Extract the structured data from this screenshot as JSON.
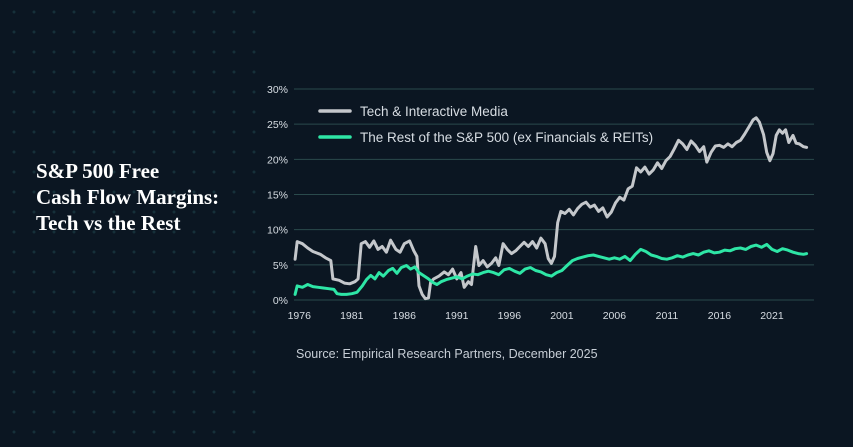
{
  "title_lines": [
    "S&P 500 Free",
    "Cash Flow Margins:",
    "Tech vs the Rest"
  ],
  "source": "Source: Empirical Research Partners, December 2025",
  "colors": {
    "tech": "#c4c7cb",
    "rest": "#2ee6a6",
    "grid": "#2a4a4c",
    "text": "#d7dde3",
    "background": "#0b1622"
  },
  "chart_data": {
    "type": "line",
    "xlim": [
      1975.5,
      2025
    ],
    "ylim": [
      0,
      30
    ],
    "y_ticks": [
      0,
      5,
      10,
      15,
      20,
      25,
      30
    ],
    "y_tick_labels": [
      "0%",
      "5%",
      "10%",
      "15%",
      "20%",
      "25%",
      "30%"
    ],
    "x_ticks": [
      1976,
      1981,
      1986,
      1991,
      1996,
      2001,
      2006,
      2011,
      2016,
      2021
    ],
    "x_tick_labels": [
      "1976",
      "1981",
      "1986",
      "1991",
      "1996",
      "2001",
      "2006",
      "2011",
      "2016",
      "2021"
    ],
    "grid": "horizontal",
    "legend_position": "top-left",
    "xlabel": "",
    "ylabel": "",
    "series": [
      {
        "name": "Tech & Interactive Media",
        "color": "#c4c7cb",
        "points": [
          [
            1975.6,
            5.8
          ],
          [
            1975.8,
            8.3
          ],
          [
            1976.3,
            8.0
          ],
          [
            1976.8,
            7.4
          ],
          [
            1977.3,
            6.9
          ],
          [
            1978.0,
            6.5
          ],
          [
            1978.5,
            6.0
          ],
          [
            1979.0,
            5.6
          ],
          [
            1979.2,
            3.0
          ],
          [
            1979.8,
            2.8
          ],
          [
            1980.3,
            2.4
          ],
          [
            1980.8,
            2.3
          ],
          [
            1981.3,
            2.6
          ],
          [
            1981.6,
            3.0
          ],
          [
            1981.9,
            8.0
          ],
          [
            1982.3,
            8.3
          ],
          [
            1982.7,
            7.5
          ],
          [
            1983.1,
            8.4
          ],
          [
            1983.5,
            7.2
          ],
          [
            1983.9,
            7.6
          ],
          [
            1984.3,
            6.8
          ],
          [
            1984.7,
            8.5
          ],
          [
            1985.2,
            7.2
          ],
          [
            1985.6,
            6.8
          ],
          [
            1986.0,
            8.0
          ],
          [
            1986.5,
            8.4
          ],
          [
            1986.9,
            7.0
          ],
          [
            1987.2,
            6.2
          ],
          [
            1987.4,
            2.0
          ],
          [
            1987.7,
            0.8
          ],
          [
            1988.0,
            0.2
          ],
          [
            1988.3,
            0.3
          ],
          [
            1988.5,
            2.5
          ],
          [
            1988.8,
            3.0
          ],
          [
            1989.3,
            3.4
          ],
          [
            1989.8,
            4.0
          ],
          [
            1990.2,
            3.6
          ],
          [
            1990.6,
            4.4
          ],
          [
            1991.0,
            3.0
          ],
          [
            1991.4,
            3.9
          ],
          [
            1991.7,
            1.8
          ],
          [
            1992.1,
            2.6
          ],
          [
            1992.4,
            2.2
          ],
          [
            1992.8,
            7.6
          ],
          [
            1993.1,
            4.9
          ],
          [
            1993.5,
            5.6
          ],
          [
            1993.9,
            4.7
          ],
          [
            1994.3,
            5.2
          ],
          [
            1994.7,
            6.0
          ],
          [
            1995.0,
            4.9
          ],
          [
            1995.4,
            8.0
          ],
          [
            1995.8,
            7.2
          ],
          [
            1996.2,
            6.6
          ],
          [
            1996.6,
            7.0
          ],
          [
            1997.0,
            7.6
          ],
          [
            1997.4,
            8.2
          ],
          [
            1997.8,
            7.6
          ],
          [
            1998.2,
            8.3
          ],
          [
            1998.6,
            7.4
          ],
          [
            1999.0,
            8.8
          ],
          [
            1999.4,
            8.0
          ],
          [
            1999.7,
            5.9
          ],
          [
            2000.0,
            5.2
          ],
          [
            2000.3,
            6.2
          ],
          [
            2000.6,
            11.0
          ],
          [
            2000.9,
            12.6
          ],
          [
            2001.3,
            12.3
          ],
          [
            2001.7,
            12.9
          ],
          [
            2002.1,
            12.1
          ],
          [
            2002.5,
            13.0
          ],
          [
            2002.9,
            13.6
          ],
          [
            2003.3,
            13.9
          ],
          [
            2003.7,
            13.2
          ],
          [
            2004.1,
            13.5
          ],
          [
            2004.5,
            12.6
          ],
          [
            2004.9,
            13.1
          ],
          [
            2005.3,
            11.8
          ],
          [
            2005.7,
            12.5
          ],
          [
            2006.1,
            13.8
          ],
          [
            2006.5,
            14.6
          ],
          [
            2006.9,
            14.2
          ],
          [
            2007.3,
            15.8
          ],
          [
            2007.7,
            16.2
          ],
          [
            2008.1,
            18.8
          ],
          [
            2008.5,
            18.2
          ],
          [
            2008.9,
            18.9
          ],
          [
            2009.3,
            17.9
          ],
          [
            2009.7,
            18.5
          ],
          [
            2010.1,
            19.5
          ],
          [
            2010.5,
            18.7
          ],
          [
            2010.9,
            19.8
          ],
          [
            2011.3,
            20.4
          ],
          [
            2011.7,
            21.5
          ],
          [
            2012.1,
            22.7
          ],
          [
            2012.5,
            22.2
          ],
          [
            2012.9,
            21.4
          ],
          [
            2013.3,
            22.6
          ],
          [
            2013.7,
            22.0
          ],
          [
            2014.1,
            21.1
          ],
          [
            2014.5,
            21.8
          ],
          [
            2014.8,
            19.6
          ],
          [
            2015.2,
            21.0
          ],
          [
            2015.6,
            21.9
          ],
          [
            2016.0,
            22.0
          ],
          [
            2016.4,
            21.7
          ],
          [
            2016.8,
            22.2
          ],
          [
            2017.2,
            21.8
          ],
          [
            2017.6,
            22.4
          ],
          [
            2018.0,
            22.7
          ],
          [
            2018.4,
            23.6
          ],
          [
            2018.8,
            24.6
          ],
          [
            2019.2,
            25.6
          ],
          [
            2019.5,
            25.9
          ],
          [
            2019.8,
            25.3
          ],
          [
            2020.2,
            23.5
          ],
          [
            2020.5,
            21.0
          ],
          [
            2020.8,
            19.8
          ],
          [
            2021.1,
            20.8
          ],
          [
            2021.4,
            23.4
          ],
          [
            2021.7,
            24.2
          ],
          [
            2022.0,
            23.7
          ],
          [
            2022.3,
            24.2
          ],
          [
            2022.6,
            22.4
          ],
          [
            2023.0,
            23.4
          ],
          [
            2023.3,
            22.3
          ],
          [
            2023.6,
            22.2
          ],
          [
            2024.0,
            21.8
          ],
          [
            2024.3,
            21.7
          ]
        ]
      },
      {
        "name": "The Rest of the S&P 500 (ex Financials & REITs)",
        "color": "#2ee6a6",
        "points": [
          [
            1975.6,
            0.8
          ],
          [
            1975.8,
            2.0
          ],
          [
            1976.3,
            1.8
          ],
          [
            1976.8,
            2.2
          ],
          [
            1977.3,
            1.9
          ],
          [
            1977.8,
            1.8
          ],
          [
            1978.3,
            1.7
          ],
          [
            1978.8,
            1.6
          ],
          [
            1979.3,
            1.5
          ],
          [
            1979.6,
            0.9
          ],
          [
            1980.0,
            0.8
          ],
          [
            1980.5,
            0.8
          ],
          [
            1981.0,
            0.9
          ],
          [
            1981.5,
            1.1
          ],
          [
            1982.0,
            2.0
          ],
          [
            1982.4,
            2.9
          ],
          [
            1982.8,
            3.5
          ],
          [
            1983.2,
            3.0
          ],
          [
            1983.6,
            3.9
          ],
          [
            1984.0,
            3.4
          ],
          [
            1984.5,
            4.2
          ],
          [
            1984.9,
            4.5
          ],
          [
            1985.3,
            3.8
          ],
          [
            1985.7,
            4.6
          ],
          [
            1986.2,
            4.9
          ],
          [
            1986.6,
            4.4
          ],
          [
            1987.0,
            4.7
          ],
          [
            1987.4,
            3.9
          ],
          [
            1987.8,
            3.5
          ],
          [
            1988.3,
            3.0
          ],
          [
            1988.7,
            2.5
          ],
          [
            1989.1,
            2.2
          ],
          [
            1989.5,
            2.6
          ],
          [
            1990.0,
            2.9
          ],
          [
            1990.5,
            3.1
          ],
          [
            1991.0,
            3.3
          ],
          [
            1991.5,
            3.0
          ],
          [
            1992.0,
            3.4
          ],
          [
            1992.5,
            3.7
          ],
          [
            1993.0,
            3.6
          ],
          [
            1993.5,
            3.9
          ],
          [
            1994.0,
            4.1
          ],
          [
            1994.5,
            3.9
          ],
          [
            1995.0,
            3.6
          ],
          [
            1995.5,
            4.3
          ],
          [
            1996.0,
            4.5
          ],
          [
            1996.5,
            4.1
          ],
          [
            1997.0,
            3.8
          ],
          [
            1997.5,
            4.4
          ],
          [
            1998.0,
            4.6
          ],
          [
            1998.5,
            4.2
          ],
          [
            1999.0,
            4.0
          ],
          [
            1999.5,
            3.6
          ],
          [
            2000.0,
            3.4
          ],
          [
            2000.5,
            3.9
          ],
          [
            2001.0,
            4.2
          ],
          [
            2001.5,
            4.9
          ],
          [
            2002.0,
            5.6
          ],
          [
            2002.5,
            5.9
          ],
          [
            2003.0,
            6.1
          ],
          [
            2003.5,
            6.3
          ],
          [
            2004.0,
            6.4
          ],
          [
            2004.5,
            6.2
          ],
          [
            2005.0,
            6.0
          ],
          [
            2005.5,
            5.8
          ],
          [
            2006.0,
            6.0
          ],
          [
            2006.5,
            5.8
          ],
          [
            2007.0,
            6.2
          ],
          [
            2007.5,
            5.6
          ],
          [
            2008.0,
            6.5
          ],
          [
            2008.5,
            7.2
          ],
          [
            2009.0,
            6.9
          ],
          [
            2009.5,
            6.4
          ],
          [
            2010.0,
            6.2
          ],
          [
            2010.5,
            5.9
          ],
          [
            2011.0,
            5.8
          ],
          [
            2011.5,
            6.0
          ],
          [
            2012.0,
            6.3
          ],
          [
            2012.5,
            6.1
          ],
          [
            2013.0,
            6.4
          ],
          [
            2013.5,
            6.6
          ],
          [
            2014.0,
            6.4
          ],
          [
            2014.5,
            6.8
          ],
          [
            2015.0,
            7.0
          ],
          [
            2015.5,
            6.7
          ],
          [
            2016.0,
            6.8
          ],
          [
            2016.5,
            7.1
          ],
          [
            2017.0,
            7.0
          ],
          [
            2017.5,
            7.3
          ],
          [
            2018.0,
            7.4
          ],
          [
            2018.5,
            7.2
          ],
          [
            2019.0,
            7.6
          ],
          [
            2019.5,
            7.8
          ],
          [
            2020.0,
            7.5
          ],
          [
            2020.5,
            7.9
          ],
          [
            2021.0,
            7.2
          ],
          [
            2021.5,
            6.9
          ],
          [
            2022.0,
            7.3
          ],
          [
            2022.5,
            7.1
          ],
          [
            2023.0,
            6.8
          ],
          [
            2023.5,
            6.6
          ],
          [
            2024.0,
            6.5
          ],
          [
            2024.3,
            6.6
          ]
        ]
      }
    ]
  }
}
